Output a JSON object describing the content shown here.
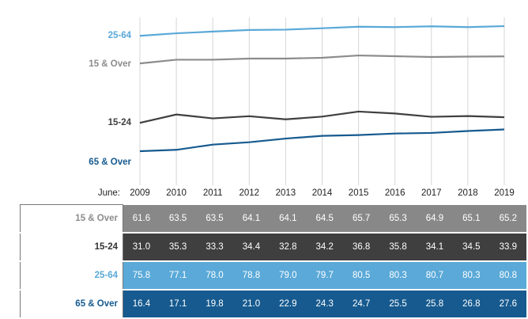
{
  "chart_data": {
    "type": "line",
    "x_axis_title": "June:",
    "categories": [
      "2009",
      "2010",
      "2011",
      "2012",
      "2013",
      "2014",
      "2015",
      "2016",
      "2017",
      "2018",
      "2019"
    ],
    "series": [
      {
        "name": "25-64",
        "color": "#5aa9d8",
        "values": [
          75.8,
          77.1,
          78.0,
          78.8,
          79.0,
          79.7,
          80.5,
          80.3,
          80.7,
          80.3,
          80.8
        ]
      },
      {
        "name": "15 & Over",
        "color": "#8c8c8c",
        "values": [
          61.6,
          63.5,
          63.5,
          64.1,
          64.1,
          64.5,
          65.7,
          65.3,
          64.9,
          65.1,
          65.2
        ]
      },
      {
        "name": "15-24",
        "color": "#3f3f3f",
        "values": [
          31.0,
          35.3,
          33.3,
          34.4,
          32.8,
          34.2,
          36.8,
          35.8,
          34.1,
          34.5,
          33.9
        ]
      },
      {
        "name": "65 & Over",
        "color": "#165a8f",
        "values": [
          16.4,
          17.1,
          19.8,
          21.0,
          22.9,
          24.3,
          24.7,
          25.5,
          25.8,
          26.8,
          27.6
        ]
      }
    ],
    "grid": true,
    "legend": "inline-left"
  },
  "table": {
    "rows": [
      {
        "label": "15 & Over",
        "label_color": "#8c8c8c",
        "bg": "#888888",
        "values": [
          "61.6",
          "63.5",
          "63.5",
          "64.1",
          "64.1",
          "64.5",
          "65.7",
          "65.3",
          "64.9",
          "65.1",
          "65.2"
        ]
      },
      {
        "label": "15-24",
        "label_color": "#333333",
        "bg": "#3f3f3f",
        "values": [
          "31.0",
          "35.3",
          "33.3",
          "34.4",
          "32.8",
          "34.2",
          "36.8",
          "35.8",
          "34.1",
          "34.5",
          "33.9"
        ]
      },
      {
        "label": "25-64",
        "label_color": "#5aa9d8",
        "bg": "#5aa9d8",
        "values": [
          "75.8",
          "77.1",
          "78.0",
          "78.8",
          "79.0",
          "79.7",
          "80.5",
          "80.3",
          "80.7",
          "80.3",
          "80.8"
        ]
      },
      {
        "label": "65 & Over",
        "label_color": "#165a8f",
        "bg": "#165a8f",
        "values": [
          "16.4",
          "17.1",
          "19.8",
          "21.0",
          "22.9",
          "24.3",
          "24.7",
          "25.5",
          "25.8",
          "26.8",
          "27.6"
        ]
      }
    ]
  }
}
